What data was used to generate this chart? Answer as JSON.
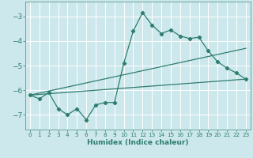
{
  "xlabel": "Humidex (Indice chaleur)",
  "background_color": "#cde8ec",
  "grid_color": "#ffffff",
  "line_color": "#2e7d6e",
  "xlim": [
    -0.5,
    23.5
  ],
  "ylim": [
    -7.6,
    -2.4
  ],
  "yticks": [
    -7,
    -6,
    -5,
    -4,
    -3
  ],
  "xticks": [
    0,
    1,
    2,
    3,
    4,
    5,
    6,
    7,
    8,
    9,
    10,
    11,
    12,
    13,
    14,
    15,
    16,
    17,
    18,
    19,
    20,
    21,
    22,
    23
  ],
  "main_line": [
    [
      0,
      -6.2
    ],
    [
      1,
      -6.35
    ],
    [
      2,
      -6.1
    ],
    [
      3,
      -6.75
    ],
    [
      4,
      -7.0
    ],
    [
      5,
      -6.75
    ],
    [
      6,
      -7.2
    ],
    [
      7,
      -6.6
    ],
    [
      8,
      -6.5
    ],
    [
      9,
      -6.5
    ],
    [
      10,
      -4.9
    ],
    [
      11,
      -3.6
    ],
    [
      12,
      -2.85
    ],
    [
      13,
      -3.35
    ],
    [
      14,
      -3.7
    ],
    [
      15,
      -3.55
    ],
    [
      16,
      -3.8
    ],
    [
      17,
      -3.9
    ],
    [
      18,
      -3.85
    ],
    [
      19,
      -4.4
    ],
    [
      20,
      -4.85
    ],
    [
      21,
      -5.1
    ],
    [
      22,
      -5.3
    ],
    [
      23,
      -5.55
    ]
  ],
  "line2": [
    [
      0,
      -6.2
    ],
    [
      23,
      -4.3
    ]
  ],
  "line3": [
    [
      0,
      -6.2
    ],
    [
      23,
      -5.55
    ]
  ]
}
